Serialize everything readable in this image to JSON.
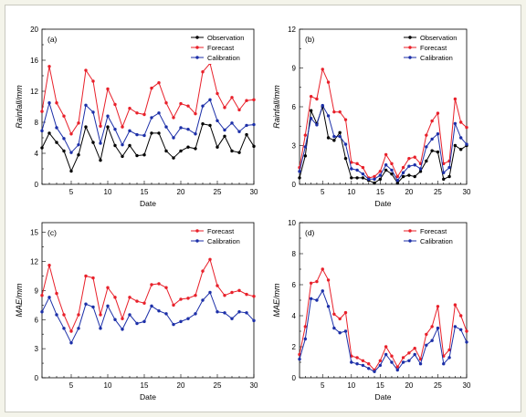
{
  "colors": {
    "observation": "#000000",
    "forecast": "#e8202a",
    "calibration": "#1c2fa8"
  },
  "chart_data": [
    {
      "type": "line",
      "panel_label": "(a)",
      "ylabel": "Rainfall/mm",
      "xlabel": "Date",
      "xlim": [
        1,
        30
      ],
      "ylim": [
        0,
        20
      ],
      "xticks": [
        5,
        10,
        15,
        20,
        25,
        30
      ],
      "yticks": [
        0,
        4,
        8,
        12,
        16,
        20
      ],
      "legend": "top-right",
      "x": [
        1,
        2,
        3,
        4,
        5,
        6,
        7,
        8,
        9,
        10,
        11,
        12,
        13,
        14,
        15,
        16,
        17,
        18,
        19,
        20,
        21,
        22,
        23,
        24,
        25,
        26,
        27,
        28,
        29,
        30
      ],
      "series": [
        {
          "name": "Observation",
          "color": "#000000",
          "values": [
            4.7,
            6.6,
            5.4,
            4.3,
            1.7,
            3.8,
            7.4,
            5.4,
            3.1,
            7.4,
            5.0,
            3.6,
            5.0,
            3.7,
            3.8,
            6.6,
            6.6,
            4.3,
            3.4,
            4.3,
            4.8,
            4.6,
            7.8,
            7.6,
            4.8,
            6.2,
            4.3,
            4.1,
            6.4,
            4.9
          ]
        },
        {
          "name": "Forecast",
          "color": "#e8202a",
          "values": [
            9.4,
            15.2,
            10.5,
            8.8,
            6.5,
            7.9,
            14.7,
            13.3,
            7.5,
            12.3,
            10.3,
            7.4,
            9.8,
            9.2,
            9.0,
            12.4,
            13.1,
            10.5,
            8.6,
            10.4,
            10.1,
            9.1,
            14.5,
            15.6,
            11.7,
            9.9,
            11.2,
            9.6,
            10.8,
            10.9
          ]
        },
        {
          "name": "Calibration",
          "color": "#1c2fa8",
          "values": [
            6.9,
            10.5,
            7.3,
            5.9,
            4.1,
            5.1,
            10.2,
            9.3,
            5.3,
            8.8,
            7.1,
            5.1,
            6.9,
            6.4,
            6.3,
            8.6,
            9.2,
            7.4,
            6.0,
            7.3,
            7.1,
            6.5,
            10.1,
            10.9,
            8.2,
            7.0,
            7.9,
            6.8,
            7.6,
            7.7
          ]
        }
      ]
    },
    {
      "type": "line",
      "panel_label": "(b)",
      "ylabel": "Rainfall/mm",
      "xlabel": "Date",
      "xlim": [
        1,
        30
      ],
      "ylim": [
        0,
        12
      ],
      "xticks": [
        5,
        10,
        15,
        20,
        25,
        30
      ],
      "yticks": [
        0,
        3,
        6,
        9,
        12
      ],
      "legend": "top-right",
      "x": [
        1,
        2,
        3,
        4,
        5,
        6,
        7,
        8,
        9,
        10,
        11,
        12,
        13,
        14,
        15,
        16,
        17,
        18,
        19,
        20,
        21,
        22,
        23,
        24,
        25,
        26,
        27,
        28,
        29,
        30
      ],
      "series": [
        {
          "name": "Observation",
          "color": "#000000",
          "values": [
            0.5,
            2.2,
            5.7,
            4.7,
            6.0,
            3.6,
            3.4,
            4.0,
            2.0,
            0.5,
            0.5,
            0.5,
            0.3,
            0.1,
            0.4,
            1.1,
            0.8,
            0.1,
            0.6,
            0.7,
            0.6,
            1.0,
            1.8,
            2.6,
            2.5,
            0.4,
            0.6,
            3.0,
            2.7,
            3.0
          ]
        },
        {
          "name": "Forecast",
          "color": "#e8202a",
          "values": [
            1.3,
            3.8,
            6.8,
            6.6,
            8.9,
            7.9,
            5.6,
            5.6,
            5.0,
            1.7,
            1.6,
            1.3,
            0.5,
            0.6,
            1.0,
            2.3,
            1.6,
            0.6,
            1.3,
            2.0,
            2.1,
            1.6,
            3.8,
            4.9,
            5.5,
            1.6,
            1.8,
            6.6,
            4.8,
            4.4
          ]
        },
        {
          "name": "Calibration",
          "color": "#1c2fa8",
          "values": [
            1.0,
            2.9,
            5.1,
            4.6,
            6.1,
            5.3,
            3.7,
            3.7,
            3.1,
            1.2,
            1.1,
            0.8,
            0.4,
            0.4,
            0.7,
            1.5,
            1.1,
            0.3,
            0.9,
            1.4,
            1.5,
            1.2,
            2.9,
            3.5,
            3.9,
            0.9,
            1.3,
            4.7,
            3.6,
            3.1
          ]
        }
      ]
    },
    {
      "type": "line",
      "panel_label": "(c)",
      "ylabel": "MAE/mm",
      "xlabel": "Date",
      "xlim": [
        1,
        30
      ],
      "ylim": [
        0,
        16
      ],
      "xticks": [
        5,
        10,
        15,
        20,
        25,
        30
      ],
      "yticks": [
        0,
        3,
        6,
        9,
        12,
        15
      ],
      "legend": "top-right",
      "x": [
        1,
        2,
        3,
        4,
        5,
        6,
        7,
        8,
        9,
        10,
        11,
        12,
        13,
        14,
        15,
        16,
        17,
        18,
        19,
        20,
        21,
        22,
        23,
        24,
        25,
        26,
        27,
        28,
        29,
        30
      ],
      "series": [
        {
          "name": "Forecast",
          "color": "#e8202a",
          "values": [
            8.5,
            11.6,
            8.7,
            6.5,
            4.8,
            6.5,
            10.5,
            10.3,
            6.5,
            9.3,
            8.3,
            6.1,
            8.3,
            7.9,
            7.7,
            9.6,
            9.7,
            9.3,
            7.5,
            8.1,
            8.2,
            8.5,
            11.0,
            12.2,
            9.5,
            8.5,
            8.8,
            9.0,
            8.6,
            8.4
          ]
        },
        {
          "name": "Calibration",
          "color": "#1c2fa8",
          "values": [
            6.8,
            8.3,
            6.5,
            5.1,
            3.6,
            5.1,
            7.6,
            7.3,
            5.1,
            7.4,
            6.0,
            5.0,
            6.5,
            5.6,
            5.8,
            7.4,
            6.9,
            6.6,
            5.5,
            5.8,
            6.1,
            6.6,
            8.0,
            8.8,
            6.8,
            6.7,
            6.1,
            6.8,
            6.7,
            5.9
          ]
        }
      ]
    },
    {
      "type": "line",
      "panel_label": "(d)",
      "ylabel": "MAE/mm",
      "xlabel": "Date",
      "xlim": [
        1,
        30
      ],
      "ylim": [
        0,
        10
      ],
      "xticks": [
        5,
        10,
        15,
        20,
        25,
        30
      ],
      "yticks": [
        0,
        2,
        4,
        6,
        8,
        10
      ],
      "legend": "top-right",
      "x": [
        1,
        2,
        3,
        4,
        5,
        6,
        7,
        8,
        9,
        10,
        11,
        12,
        13,
        14,
        15,
        16,
        17,
        18,
        19,
        20,
        21,
        22,
        23,
        24,
        25,
        26,
        27,
        28,
        29,
        30
      ],
      "series": [
        {
          "name": "Forecast",
          "color": "#e8202a",
          "values": [
            1.5,
            3.3,
            6.1,
            6.2,
            7.0,
            6.3,
            4.1,
            3.8,
            4.2,
            1.4,
            1.3,
            1.1,
            0.9,
            0.5,
            1.1,
            2.0,
            1.4,
            0.7,
            1.3,
            1.6,
            1.9,
            1.2,
            2.8,
            3.3,
            4.6,
            1.4,
            1.8,
            4.7,
            4.0,
            3.0
          ]
        },
        {
          "name": "Calibration",
          "color": "#1c2fa8",
          "values": [
            1.2,
            2.5,
            5.1,
            5.0,
            5.6,
            4.6,
            3.2,
            2.9,
            3.0,
            1.0,
            0.9,
            0.8,
            0.6,
            0.4,
            0.8,
            1.5,
            1.0,
            0.5,
            1.0,
            1.1,
            1.5,
            0.9,
            2.1,
            2.4,
            3.2,
            0.9,
            1.3,
            3.3,
            3.1,
            2.3
          ]
        }
      ]
    }
  ]
}
